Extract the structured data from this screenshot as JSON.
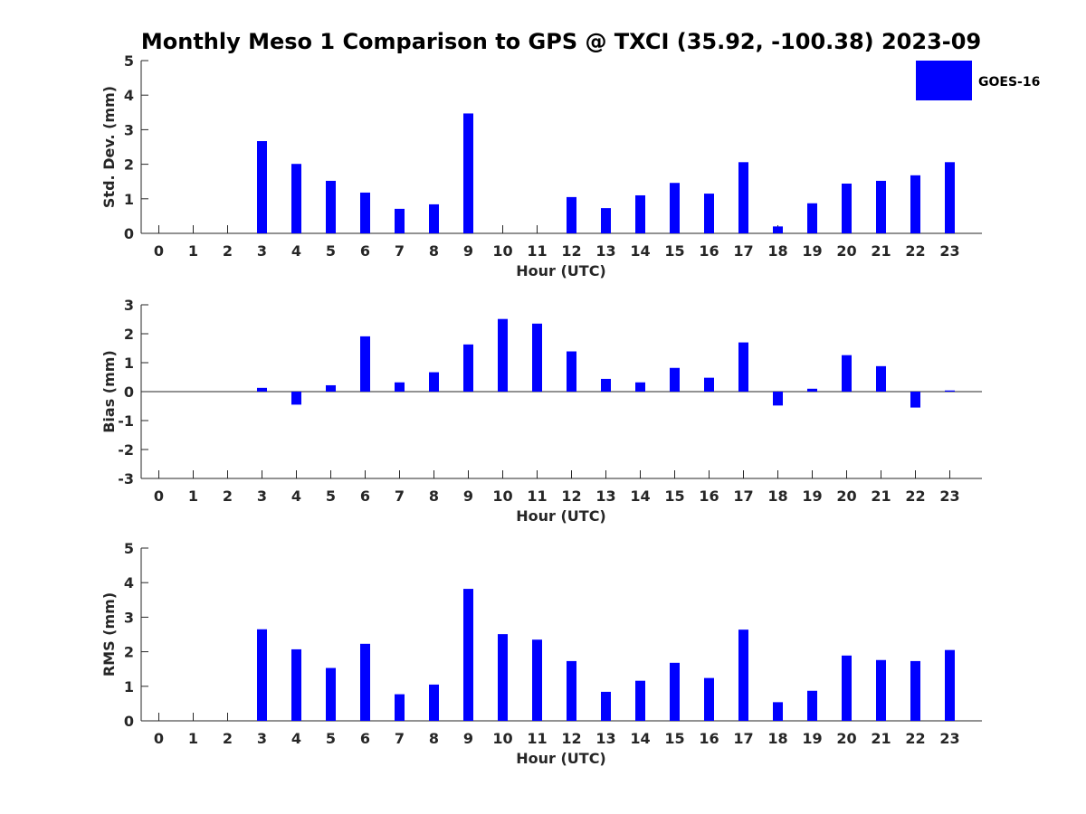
{
  "chart_data": {
    "title": "Monthly Meso 1 Comparison to GPS @ TXCI (35.92, -100.38) 2023-09",
    "legend": {
      "label": "GOES-16",
      "placement": "top-right",
      "color": "#0000ff"
    },
    "bar_color": "#0000ff",
    "panels": [
      {
        "type": "bar",
        "xlabel": "Hour (UTC)",
        "ylabel": "Std. Dev. (mm)",
        "ylim": [
          0,
          5
        ],
        "yticks": [
          "0",
          "1",
          "2",
          "3",
          "4",
          "5"
        ],
        "categories": [
          "0",
          "1",
          "2",
          "3",
          "4",
          "5",
          "6",
          "7",
          "8",
          "9",
          "10",
          "11",
          "12",
          "13",
          "14",
          "15",
          "16",
          "17",
          "18",
          "19",
          "20",
          "21",
          "22",
          "23"
        ],
        "values": [
          null,
          null,
          null,
          2.67,
          2.01,
          1.52,
          1.18,
          0.71,
          0.84,
          3.47,
          null,
          null,
          1.05,
          0.73,
          1.1,
          1.46,
          1.15,
          2.06,
          0.2,
          0.87,
          1.44,
          1.52,
          1.68,
          2.06
        ]
      },
      {
        "type": "bar",
        "xlabel": "Hour (UTC)",
        "ylabel": "Bias (mm)",
        "ylim": [
          -3,
          3
        ],
        "yticks": [
          "-3",
          "-2",
          "-1",
          "0",
          "1",
          "2",
          "3"
        ],
        "categories": [
          "0",
          "1",
          "2",
          "3",
          "4",
          "5",
          "6",
          "7",
          "8",
          "9",
          "10",
          "11",
          "12",
          "13",
          "14",
          "15",
          "16",
          "17",
          "18",
          "19",
          "20",
          "21",
          "22",
          "23"
        ],
        "values": [
          null,
          null,
          null,
          0.13,
          -0.45,
          0.22,
          1.91,
          0.32,
          0.67,
          1.63,
          2.51,
          2.35,
          1.39,
          0.44,
          0.32,
          0.82,
          0.48,
          1.7,
          -0.48,
          0.1,
          1.26,
          0.88,
          -0.55,
          0.04
        ]
      },
      {
        "type": "bar",
        "xlabel": "Hour (UTC)",
        "ylabel": "RMS (mm)",
        "ylim": [
          0,
          5
        ],
        "yticks": [
          "0",
          "1",
          "2",
          "3",
          "4",
          "5"
        ],
        "categories": [
          "0",
          "1",
          "2",
          "3",
          "4",
          "5",
          "6",
          "7",
          "8",
          "9",
          "10",
          "11",
          "12",
          "13",
          "14",
          "15",
          "16",
          "17",
          "18",
          "19",
          "20",
          "21",
          "22",
          "23"
        ],
        "values": [
          null,
          null,
          null,
          2.65,
          2.07,
          1.53,
          2.23,
          0.77,
          1.05,
          3.82,
          2.51,
          2.35,
          1.73,
          0.84,
          1.16,
          1.68,
          1.24,
          2.64,
          0.54,
          0.87,
          1.89,
          1.76,
          1.73,
          2.05
        ]
      }
    ]
  }
}
